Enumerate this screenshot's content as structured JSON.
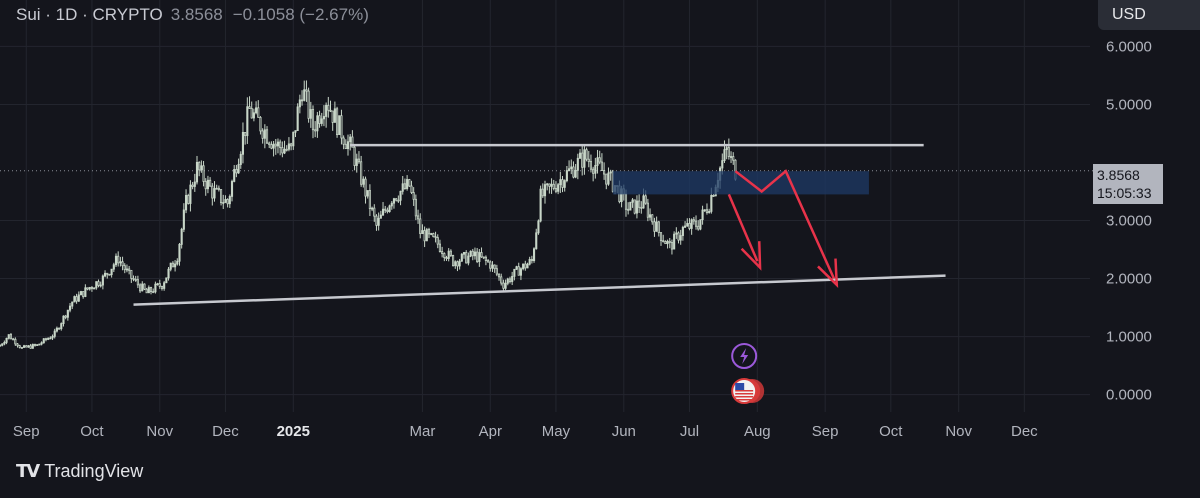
{
  "header": {
    "symbol_line": "Sui · 1D · CRYPTO",
    "last_price": "3.8568",
    "change": "−0.1058 (−2.67%)"
  },
  "currency_button": "USD",
  "price_tag": {
    "price": "3.8568",
    "countdown": "15:05:33"
  },
  "brand": {
    "name": "TradingView"
  },
  "colors": {
    "background": "#14151c",
    "candle": "#c8d6c8",
    "trendline": "#c7c9cf",
    "zone": "#1e3a66",
    "arrow": "#e8334a",
    "event_purple": "#9b59d9",
    "event_red": "#d83a3a"
  },
  "chart_data": {
    "type": "candlestick",
    "y_axis": {
      "ticks": [
        {
          "label": "6.0000",
          "value": 6.0
        },
        {
          "label": "5.0000",
          "value": 5.0
        },
        {
          "label": "3.0000",
          "value": 3.0
        },
        {
          "label": "2.0000",
          "value": 2.0
        },
        {
          "label": "1.0000",
          "value": 1.0
        },
        {
          "label": "0.0000",
          "value": 0.0
        }
      ],
      "range": [
        -0.3,
        6.8
      ]
    },
    "x_axis": {
      "ticks": [
        {
          "label": "Sep",
          "date": "2024-09-01",
          "bold": false
        },
        {
          "label": "Oct",
          "date": "2024-10-01",
          "bold": false
        },
        {
          "label": "Nov",
          "date": "2024-11-01",
          "bold": false
        },
        {
          "label": "Dec",
          "date": "2024-12-01",
          "bold": false
        },
        {
          "label": "2025",
          "date": "2025-01-01",
          "bold": true
        },
        {
          "label": "Mar",
          "date": "2025-03-01",
          "bold": false
        },
        {
          "label": "Apr",
          "date": "2025-04-01",
          "bold": false
        },
        {
          "label": "May",
          "date": "2025-05-01",
          "bold": false
        },
        {
          "label": "Jun",
          "date": "2025-06-01",
          "bold": false
        },
        {
          "label": "Jul",
          "date": "2025-07-01",
          "bold": false
        },
        {
          "label": "Aug",
          "date": "2025-08-01",
          "bold": false
        },
        {
          "label": "Sep",
          "date": "2025-09-01",
          "bold": false
        },
        {
          "label": "Oct",
          "date": "2025-10-01",
          "bold": false
        },
        {
          "label": "Nov",
          "date": "2025-11-01",
          "bold": false
        },
        {
          "label": "Dec",
          "date": "2025-12-01",
          "bold": false
        }
      ],
      "range": [
        "2024-08-20",
        "2025-12-31"
      ]
    },
    "price_path": [
      [
        "2024-08-20",
        0.85
      ],
      [
        "2024-08-24",
        1.02
      ],
      [
        "2024-08-30",
        0.8
      ],
      [
        "2024-09-06",
        0.85
      ],
      [
        "2024-09-14",
        1.05
      ],
      [
        "2024-09-22",
        1.6
      ],
      [
        "2024-09-30",
        1.85
      ],
      [
        "2024-10-06",
        2.0
      ],
      [
        "2024-10-13",
        2.35
      ],
      [
        "2024-10-18",
        2.05
      ],
      [
        "2024-10-26",
        1.75
      ],
      [
        "2024-11-02",
        1.9
      ],
      [
        "2024-11-09",
        2.4
      ],
      [
        "2024-11-13",
        3.3
      ],
      [
        "2024-11-18",
        3.9
      ],
      [
        "2024-11-25",
        3.5
      ],
      [
        "2024-12-02",
        3.3
      ],
      [
        "2024-12-06",
        4.0
      ],
      [
        "2024-12-12",
        4.9
      ],
      [
        "2024-12-18",
        4.6
      ],
      [
        "2024-12-24",
        4.3
      ],
      [
        "2024-12-31",
        4.2
      ],
      [
        "2025-01-05",
        5.3
      ],
      [
        "2025-01-10",
        4.6
      ],
      [
        "2025-01-16",
        5.1
      ],
      [
        "2025-01-22",
        4.6
      ],
      [
        "2025-01-28",
        4.2
      ],
      [
        "2025-02-03",
        3.5
      ],
      [
        "2025-02-08",
        2.9
      ],
      [
        "2025-02-15",
        3.4
      ],
      [
        "2025-02-23",
        3.6
      ],
      [
        "2025-02-28",
        2.8
      ],
      [
        "2025-03-08",
        2.6
      ],
      [
        "2025-03-15",
        2.3
      ],
      [
        "2025-03-25",
        2.4
      ],
      [
        "2025-04-01",
        2.25
      ],
      [
        "2025-04-07",
        1.9
      ],
      [
        "2025-04-14",
        2.15
      ],
      [
        "2025-04-20",
        2.3
      ],
      [
        "2025-04-24",
        3.4
      ],
      [
        "2025-05-03",
        3.7
      ],
      [
        "2025-05-10",
        3.95
      ],
      [
        "2025-05-14",
        4.1
      ],
      [
        "2025-05-21",
        3.9
      ],
      [
        "2025-05-28",
        3.6
      ],
      [
        "2025-06-03",
        3.2
      ],
      [
        "2025-06-10",
        3.3
      ],
      [
        "2025-06-17",
        2.8
      ],
      [
        "2025-06-22",
        2.55
      ],
      [
        "2025-06-28",
        2.85
      ],
      [
        "2025-07-05",
        2.95
      ],
      [
        "2025-07-10",
        3.3
      ],
      [
        "2025-07-14",
        3.8
      ],
      [
        "2025-07-18",
        4.2
      ],
      [
        "2025-07-22",
        3.86
      ]
    ],
    "trendlines": [
      {
        "name": "resistance",
        "from": [
          "2025-01-27",
          4.3
        ],
        "to": [
          "2025-10-16",
          4.3
        ]
      },
      {
        "name": "support",
        "from": [
          "2024-10-20",
          1.55
        ],
        "to": [
          "2025-10-26",
          2.05
        ]
      }
    ],
    "zone": {
      "from": [
        "2025-05-27",
        3.85
      ],
      "to": [
        "2025-09-21",
        3.45
      ]
    },
    "arrows": [
      {
        "name": "arrow-down-straight",
        "points": [
          [
            "2025-07-19",
            3.45
          ],
          [
            "2025-08-01",
            2.3
          ]
        ]
      },
      {
        "name": "arrow-zigzag",
        "points": [
          [
            "2025-07-22",
            3.85
          ],
          [
            "2025-08-03",
            3.5
          ],
          [
            "2025-08-14",
            3.85
          ],
          [
            "2025-09-05",
            2.0
          ]
        ]
      }
    ],
    "events": [
      {
        "name": "lightning-event",
        "date": "2025-07-26",
        "color": "#9b59d9"
      },
      {
        "name": "us-flag-event",
        "date": "2025-07-26",
        "color": "#d83a3a"
      }
    ],
    "last_price": 3.8568
  }
}
